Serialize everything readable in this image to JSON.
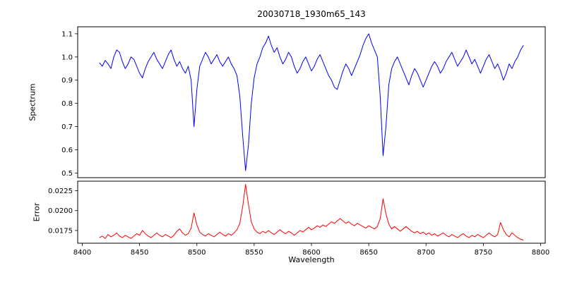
{
  "chart_data": {
    "type": "line",
    "title": "20030718_1930m65_143",
    "xlabel": "Wavelength",
    "xlim": [
      8396,
      8804
    ],
    "x_ticks": [
      8400,
      8450,
      8500,
      8550,
      8600,
      8650,
      8700,
      8750,
      8800
    ],
    "grid": false,
    "legend": "none",
    "subplots": [
      {
        "ylabel": "Spectrum",
        "ylim": [
          0.48,
          1.13
        ],
        "yticks": [
          0.5,
          0.6,
          0.7,
          0.8,
          0.9,
          1.0,
          1.1
        ],
        "ytick_labels": [
          "0.5",
          "0.6",
          "0.7",
          "0.8",
          "0.9",
          "1.0",
          "1.1"
        ],
        "color": "#0000ff"
      },
      {
        "ylabel": "Error",
        "ylim": [
          0.0159,
          0.0237
        ],
        "yticks": [
          0.0175,
          0.02,
          0.0225
        ],
        "ytick_labels": [
          "0.0175",
          "0.0200",
          "0.0225"
        ],
        "color": "#ff0000"
      }
    ],
    "x": [
      8415.0,
      8417.5,
      8420.0,
      8422.5,
      8425.0,
      8427.5,
      8430.0,
      8432.5,
      8435.0,
      8437.5,
      8440.0,
      8442.5,
      8445.0,
      8447.5,
      8450.0,
      8452.5,
      8455.0,
      8457.5,
      8460.0,
      8462.5,
      8465.0,
      8467.5,
      8470.0,
      8472.5,
      8475.0,
      8477.5,
      8480.0,
      8482.5,
      8485.0,
      8487.5,
      8490.0,
      8492.5,
      8495.0,
      8497.5,
      8500.0,
      8502.5,
      8505.0,
      8507.5,
      8510.0,
      8512.5,
      8515.0,
      8517.5,
      8520.0,
      8522.5,
      8525.0,
      8527.5,
      8530.0,
      8532.5,
      8535.0,
      8537.5,
      8540.0,
      8542.5,
      8545.0,
      8547.5,
      8550.0,
      8552.5,
      8555.0,
      8557.5,
      8560.0,
      8562.5,
      8565.0,
      8567.5,
      8570.0,
      8572.5,
      8575.0,
      8577.5,
      8580.0,
      8582.5,
      8585.0,
      8587.5,
      8590.0,
      8592.5,
      8595.0,
      8597.5,
      8600.0,
      8602.5,
      8605.0,
      8607.5,
      8610.0,
      8612.5,
      8615.0,
      8617.5,
      8620.0,
      8622.5,
      8625.0,
      8627.5,
      8630.0,
      8632.5,
      8635.0,
      8637.5,
      8640.0,
      8642.5,
      8645.0,
      8647.5,
      8650.0,
      8652.5,
      8655.0,
      8657.5,
      8660.0,
      8662.5,
      8665.0,
      8667.5,
      8670.0,
      8672.5,
      8675.0,
      8677.5,
      8680.0,
      8682.5,
      8685.0,
      8687.5,
      8690.0,
      8692.5,
      8695.0,
      8697.5,
      8700.0,
      8702.5,
      8705.0,
      8707.5,
      8710.0,
      8712.5,
      8715.0,
      8717.5,
      8720.0,
      8722.5,
      8725.0,
      8727.5,
      8730.0,
      8732.5,
      8735.0,
      8737.5,
      8740.0,
      8742.5,
      8745.0,
      8747.5,
      8750.0,
      8752.5,
      8755.0,
      8757.5,
      8760.0,
      8762.5,
      8765.0,
      8767.5,
      8770.0,
      8772.5,
      8775.0,
      8777.5,
      8780.0,
      8782.5,
      8785.0
    ],
    "series": [
      {
        "name": "Spectrum",
        "values": [
          0.975,
          0.96,
          0.985,
          0.97,
          0.95,
          1.0,
          1.03,
          1.02,
          0.98,
          0.95,
          0.97,
          1.0,
          0.99,
          0.96,
          0.93,
          0.91,
          0.95,
          0.98,
          1.0,
          1.02,
          0.99,
          0.97,
          0.95,
          0.98,
          1.01,
          1.03,
          0.99,
          0.96,
          0.98,
          0.95,
          0.93,
          0.96,
          0.9,
          0.7,
          0.86,
          0.96,
          0.99,
          1.02,
          1.0,
          0.97,
          0.99,
          1.01,
          0.98,
          0.96,
          0.98,
          1.0,
          0.97,
          0.95,
          0.92,
          0.83,
          0.66,
          0.51,
          0.62,
          0.8,
          0.91,
          0.97,
          1.0,
          1.04,
          1.06,
          1.09,
          1.05,
          1.02,
          1.04,
          1.0,
          0.97,
          0.99,
          1.02,
          1.0,
          0.96,
          0.93,
          0.95,
          0.98,
          1.0,
          0.97,
          0.94,
          0.96,
          0.99,
          1.01,
          0.98,
          0.95,
          0.92,
          0.9,
          0.87,
          0.86,
          0.9,
          0.94,
          0.97,
          0.95,
          0.92,
          0.95,
          0.98,
          1.01,
          1.05,
          1.08,
          1.1,
          1.06,
          1.03,
          1.0,
          0.83,
          0.575,
          0.7,
          0.88,
          0.95,
          0.98,
          1.0,
          0.97,
          0.94,
          0.91,
          0.88,
          0.92,
          0.95,
          0.93,
          0.9,
          0.87,
          0.9,
          0.93,
          0.96,
          0.98,
          0.96,
          0.93,
          0.95,
          0.98,
          1.0,
          1.02,
          0.99,
          0.96,
          0.98,
          1.0,
          1.03,
          1.0,
          0.97,
          0.99,
          0.96,
          0.93,
          0.96,
          0.99,
          1.01,
          0.98,
          0.95,
          0.97,
          0.94,
          0.9,
          0.93,
          0.97,
          0.95,
          0.98,
          1.0,
          1.03,
          1.05
        ]
      },
      {
        "name": "Error",
        "values": [
          0.0166,
          0.0168,
          0.0165,
          0.017,
          0.0167,
          0.0169,
          0.0172,
          0.0168,
          0.0166,
          0.0169,
          0.0167,
          0.0165,
          0.0168,
          0.0171,
          0.0169,
          0.0175,
          0.0171,
          0.0168,
          0.0166,
          0.0169,
          0.0172,
          0.0169,
          0.0167,
          0.017,
          0.0168,
          0.0166,
          0.0169,
          0.0174,
          0.0177,
          0.0172,
          0.0169,
          0.0171,
          0.0178,
          0.0197,
          0.0182,
          0.0173,
          0.017,
          0.0168,
          0.0171,
          0.0169,
          0.0167,
          0.017,
          0.0173,
          0.017,
          0.0168,
          0.0171,
          0.0169,
          0.0172,
          0.0176,
          0.0184,
          0.0205,
          0.0233,
          0.0208,
          0.0186,
          0.0177,
          0.0173,
          0.0171,
          0.0174,
          0.0172,
          0.0175,
          0.0172,
          0.017,
          0.0173,
          0.0176,
          0.0173,
          0.0171,
          0.0174,
          0.0172,
          0.0169,
          0.0172,
          0.0175,
          0.0173,
          0.0176,
          0.0179,
          0.0176,
          0.0178,
          0.0181,
          0.0179,
          0.0182,
          0.018,
          0.0183,
          0.0186,
          0.0184,
          0.0187,
          0.019,
          0.0187,
          0.0184,
          0.0186,
          0.0183,
          0.0181,
          0.0184,
          0.0182,
          0.018,
          0.0178,
          0.0181,
          0.0179,
          0.0177,
          0.018,
          0.019,
          0.0215,
          0.0196,
          0.0183,
          0.0177,
          0.018,
          0.0177,
          0.0174,
          0.0177,
          0.018,
          0.0177,
          0.0174,
          0.0172,
          0.0174,
          0.0171,
          0.0173,
          0.017,
          0.0172,
          0.0169,
          0.0171,
          0.0168,
          0.017,
          0.0172,
          0.0169,
          0.0167,
          0.017,
          0.0168,
          0.0166,
          0.0169,
          0.0171,
          0.0168,
          0.0166,
          0.0169,
          0.0167,
          0.017,
          0.0168,
          0.0166,
          0.0169,
          0.0172,
          0.0169,
          0.0167,
          0.017,
          0.0185,
          0.0176,
          0.017,
          0.0167,
          0.0172,
          0.0169,
          0.0166,
          0.0164,
          0.0163
        ]
      }
    ]
  }
}
